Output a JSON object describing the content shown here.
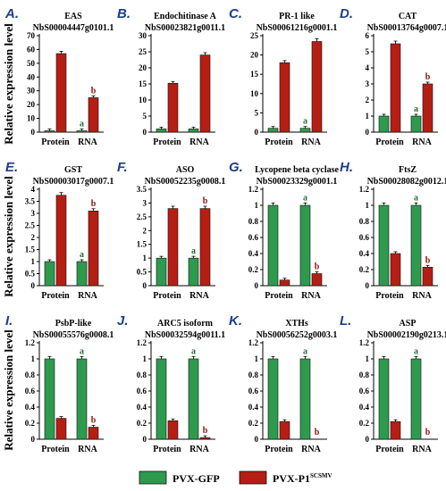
{
  "y_axis_label": "Relative expression level",
  "colors": {
    "gfp": "#2e9a4e",
    "p1": "#b51e14",
    "sig_gfp": "#1f6f35",
    "sig_p1": "#8b1010"
  },
  "legend": [
    {
      "key": "gfp",
      "label": "PVX-GFP",
      "sup": ""
    },
    {
      "key": "p1",
      "label": "PVX-P1",
      "sup": "SCSMV"
    }
  ],
  "chart_data": [
    {
      "letter": "A.",
      "title": "EAS",
      "subtitle": "NbS00004447g0101.1",
      "type": "bar",
      "categories": [
        "Protein",
        "RNA"
      ],
      "ylim": [
        0,
        70
      ],
      "yticks": [
        0,
        10,
        20,
        30,
        40,
        50,
        60,
        70
      ],
      "series": [
        {
          "name": "PVX-GFP",
          "values": [
            1,
            1
          ]
        },
        {
          "name": "PVX-P1SCSMV",
          "values": [
            57,
            25
          ]
        }
      ],
      "sig": {
        "gfp": [
          "",
          "a"
        ],
        "p1": [
          "",
          "b"
        ]
      }
    },
    {
      "letter": "B.",
      "title": "Endochitinase A",
      "subtitle": "NbS00023821g0011.1",
      "type": "bar",
      "categories": [
        "Protein",
        "RNA"
      ],
      "ylim": [
        0,
        30
      ],
      "yticks": [
        0,
        5,
        10,
        15,
        20,
        25,
        30
      ],
      "series": [
        {
          "name": "PVX-GFP",
          "values": [
            1,
            1
          ]
        },
        {
          "name": "PVX-P1SCSMV",
          "values": [
            15.2,
            24
          ]
        }
      ],
      "sig": {
        "gfp": [
          "",
          ""
        ],
        "p1": [
          "",
          ""
        ]
      }
    },
    {
      "letter": "C.",
      "title": "PR-1 like",
      "subtitle": "NbS00061216g0001.1",
      "type": "bar",
      "categories": [
        "Protein",
        "RNA"
      ],
      "ylim": [
        0,
        25
      ],
      "yticks": [
        0,
        5,
        10,
        15,
        20,
        25
      ],
      "series": [
        {
          "name": "PVX-GFP",
          "values": [
            1,
            1
          ]
        },
        {
          "name": "PVX-P1SCSMV",
          "values": [
            18,
            23.5
          ]
        }
      ],
      "sig": {
        "gfp": [
          "",
          "a"
        ],
        "p1": [
          "",
          ""
        ]
      }
    },
    {
      "letter": "D.",
      "title": "CAT",
      "subtitle": "NbS00013764g0007.1",
      "type": "bar",
      "categories": [
        "Protein",
        "RNA"
      ],
      "ylim": [
        0,
        6
      ],
      "yticks": [
        0,
        1,
        2,
        3,
        4,
        5,
        6
      ],
      "series": [
        {
          "name": "PVX-GFP",
          "values": [
            1,
            1
          ]
        },
        {
          "name": "PVX-P1SCSMV",
          "values": [
            5.5,
            3
          ]
        }
      ],
      "sig": {
        "gfp": [
          "",
          "a"
        ],
        "p1": [
          "",
          "b"
        ]
      }
    },
    {
      "letter": "E.",
      "title": "GST",
      "subtitle": "NbS00003017g0007.1",
      "type": "bar",
      "categories": [
        "Protein",
        "RNA"
      ],
      "ylim": [
        0,
        4
      ],
      "yticks": [
        0,
        0.5,
        1,
        1.5,
        2,
        2.5,
        3,
        3.5,
        4
      ],
      "series": [
        {
          "name": "PVX-GFP",
          "values": [
            1,
            1
          ]
        },
        {
          "name": "PVX-P1SCSMV",
          "values": [
            3.75,
            3.1
          ]
        }
      ],
      "sig": {
        "gfp": [
          "",
          "a"
        ],
        "p1": [
          "",
          "b"
        ]
      }
    },
    {
      "letter": "F.",
      "title": "ASO",
      "subtitle": "NbS00052235g0008.1",
      "type": "bar",
      "categories": [
        "Protein",
        "RNA"
      ],
      "ylim": [
        0,
        3.5
      ],
      "yticks": [
        0,
        0.5,
        1,
        1.5,
        2,
        2.5,
        3,
        3.5
      ],
      "series": [
        {
          "name": "PVX-GFP",
          "values": [
            1,
            1
          ]
        },
        {
          "name": "PVX-P1SCSMV",
          "values": [
            2.8,
            2.8
          ]
        }
      ],
      "sig": {
        "gfp": [
          "",
          "a"
        ],
        "p1": [
          "",
          "b"
        ]
      }
    },
    {
      "letter": "G.",
      "title": "Lycopene beta cyclase",
      "subtitle": "NbS00023329g0001.1",
      "type": "bar",
      "categories": [
        "Protein",
        "RNA"
      ],
      "ylim": [
        0,
        1.2
      ],
      "yticks": [
        0,
        0.2,
        0.4,
        0.6,
        0.8,
        1,
        1.2
      ],
      "series": [
        {
          "name": "PVX-GFP",
          "values": [
            1,
            1
          ]
        },
        {
          "name": "PVX-P1SCSMV",
          "values": [
            0.07,
            0.15
          ]
        }
      ],
      "sig": {
        "gfp": [
          "",
          "a"
        ],
        "p1": [
          "",
          "b"
        ]
      }
    },
    {
      "letter": "H.",
      "title": "FtsZ",
      "subtitle": "NbS00028082g0012.1",
      "type": "bar",
      "categories": [
        "Protein",
        "RNA"
      ],
      "ylim": [
        0,
        1.2
      ],
      "yticks": [
        0,
        0.2,
        0.4,
        0.6,
        0.8,
        1,
        1.2
      ],
      "series": [
        {
          "name": "PVX-GFP",
          "values": [
            1,
            1
          ]
        },
        {
          "name": "PVX-P1SCSMV",
          "values": [
            0.4,
            0.23
          ]
        }
      ],
      "sig": {
        "gfp": [
          "",
          "a"
        ],
        "p1": [
          "",
          "b"
        ]
      }
    },
    {
      "letter": "I.",
      "title": "PsbP-like",
      "subtitle": "NbS00055576g0008.1",
      "type": "bar",
      "categories": [
        "Protein",
        "RNA"
      ],
      "ylim": [
        0,
        1.2
      ],
      "yticks": [
        0,
        0.2,
        0.4,
        0.6,
        0.8,
        1,
        1.2
      ],
      "series": [
        {
          "name": "PVX-GFP",
          "values": [
            1,
            1
          ]
        },
        {
          "name": "PVX-P1SCSMV",
          "values": [
            0.26,
            0.15
          ]
        }
      ],
      "sig": {
        "gfp": [
          "",
          "a"
        ],
        "p1": [
          "",
          "b"
        ]
      }
    },
    {
      "letter": "J.",
      "title": "ARC5 isoform",
      "subtitle": "NbS00032594g0011.1",
      "type": "bar",
      "categories": [
        "Protein",
        "RNA"
      ],
      "ylim": [
        0,
        1.2
      ],
      "yticks": [
        0,
        0.2,
        0.4,
        0.6,
        0.8,
        1,
        1.2
      ],
      "series": [
        {
          "name": "PVX-GFP",
          "values": [
            1,
            1
          ]
        },
        {
          "name": "PVX-P1SCSMV",
          "values": [
            0.23,
            0.02
          ]
        }
      ],
      "sig": {
        "gfp": [
          "",
          "a"
        ],
        "p1": [
          "",
          "b"
        ]
      }
    },
    {
      "letter": "K.",
      "title": "XTHs",
      "subtitle": "NbS00056252g0003.1",
      "type": "bar",
      "categories": [
        "Protein",
        "RNA"
      ],
      "ylim": [
        0,
        1.2
      ],
      "yticks": [
        0,
        0.2,
        0.4,
        0.6,
        0.8,
        1,
        1.2
      ],
      "series": [
        {
          "name": "PVX-GFP",
          "values": [
            1,
            1
          ]
        },
        {
          "name": "PVX-P1SCSMV",
          "values": [
            0.22,
            0
          ]
        }
      ],
      "sig": {
        "gfp": [
          "",
          "a"
        ],
        "p1": [
          "",
          "b"
        ]
      }
    },
    {
      "letter": "L.",
      "title": "ASP",
      "subtitle": "NbS00002190g0213.1",
      "type": "bar",
      "categories": [
        "Protein",
        "RNA"
      ],
      "ylim": [
        0,
        1.2
      ],
      "yticks": [
        0,
        0.2,
        0.4,
        0.6,
        0.8,
        1,
        1.2
      ],
      "series": [
        {
          "name": "PVX-GFP",
          "values": [
            1,
            1
          ]
        },
        {
          "name": "PVX-P1SCSMV",
          "values": [
            0.22,
            0
          ]
        }
      ],
      "sig": {
        "gfp": [
          "",
          "a"
        ],
        "p1": [
          "",
          "b"
        ]
      }
    }
  ]
}
